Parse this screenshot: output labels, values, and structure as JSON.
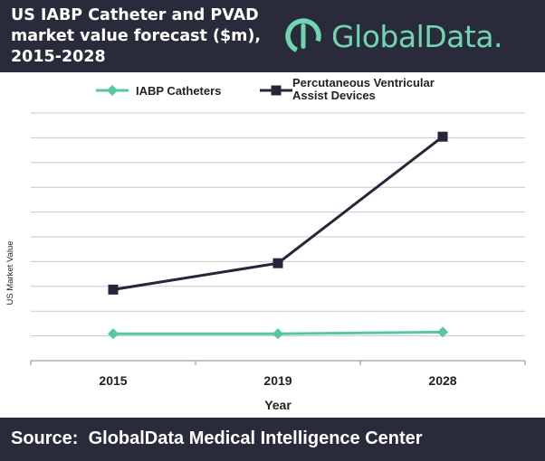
{
  "header": {
    "title_lines": [
      "US IABP Catheter and PVAD",
      "market value forecast ($m),",
      "2015-2028"
    ],
    "logo_text": "GlobalData."
  },
  "footer": {
    "source": "Source:  GlobalData Medical Intelligence Center"
  },
  "colors": {
    "header_bg": "#2a2b3a",
    "iabp": "#54c9a0",
    "pvad": "#252637",
    "logo": "#6fd6b1"
  },
  "chart_data": {
    "type": "line",
    "categories": [
      "2015",
      "2019",
      "2028"
    ],
    "xlabel": "Year",
    "ylabel": "US Market Value",
    "grid": true,
    "legend_position": "top",
    "series": [
      {
        "name": "IABP Catheters",
        "values": [
          1,
          1,
          1.3
        ],
        "marker": "diamond",
        "color": "#54c9a0"
      },
      {
        "name": "Percutaneous Ventricular\nAssist Devices",
        "values": [
          9.2,
          14.1,
          37.6
        ],
        "marker": "square",
        "color": "#252637"
      }
    ],
    "ylim": [
      -4,
      42
    ]
  }
}
